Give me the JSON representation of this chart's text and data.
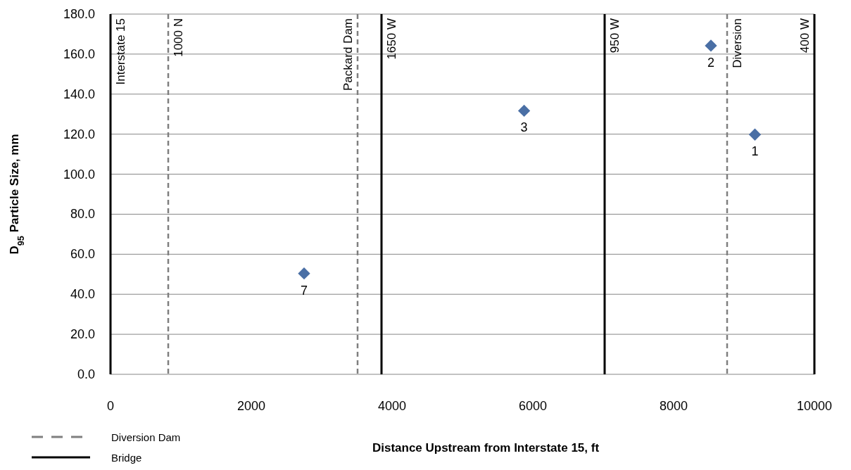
{
  "chart_data": {
    "type": "scatter",
    "xlabel": "Distance Upstream from Interstate 15, ft",
    "ylabel": "D$_{95}$ Particle Size, mm",
    "x": [
      2750,
      5876,
      8530,
      9155
    ],
    "series": [
      {
        "color": "#4a6fa5",
        "values": [
          50.4,
          131.7,
          164.2,
          119.8
        ]
      }
    ],
    "marker": "diamond",
    "xlim": [
      0,
      10000
    ],
    "xticks": [
      0,
      2000,
      4000,
      6000,
      8000,
      10000
    ],
    "ylim": [
      0,
      180
    ],
    "yticks": [
      {
        "value": 0,
        "label": "0.0"
      },
      {
        "value": 20,
        "label": "20.0"
      },
      {
        "value": 40,
        "label": "40.0"
      },
      {
        "value": 60,
        "label": "60.0"
      },
      {
        "value": 80,
        "label": "80.0"
      },
      {
        "value": 100,
        "label": "100.0"
      },
      {
        "value": 120,
        "label": "120.0"
      },
      {
        "value": 140,
        "label": "140.0"
      },
      {
        "value": 160,
        "label": "160.0"
      },
      {
        "value": 180,
        "label": "180.0"
      }
    ],
    "grid": "y",
    "ref_lines": [
      {
        "axis": "x",
        "value": 0,
        "label": "Interstate 15",
        "color": "#000000",
        "line_style": "solid"
      },
      {
        "axis": "x",
        "value": 820,
        "label": "1000 N",
        "color": "#7f7f7f",
        "line_style": "dashed"
      },
      {
        "axis": "x",
        "value": 3510,
        "label": "Packard Dam",
        "color": "#7f7f7f",
        "line_style": "dashed"
      },
      {
        "axis": "x",
        "value": 3850,
        "label": "1650 W",
        "color": "#000000",
        "line_style": "solid"
      },
      {
        "axis": "x",
        "value": 7020,
        "label": "950 W",
        "color": "#000000",
        "line_style": "solid"
      },
      {
        "axis": "x",
        "value": 8760,
        "label": "Diversion",
        "color": "#7f7f7f",
        "line_style": "dashed"
      },
      {
        "axis": "x",
        "value": 10000,
        "label": "400 W",
        "color": "#000000",
        "line_style": "solid"
      }
    ],
    "annotations": [
      {
        "text": "7",
        "x": 2750,
        "y": 50.4
      },
      {
        "text": "3",
        "x": 5876,
        "y": 131.7
      },
      {
        "text": "2",
        "x": 8530,
        "y": 164.2
      },
      {
        "text": "1",
        "x": 9155,
        "y": 119.8
      },
      "Diversion Dam",
      "Bridge"
    ]
  }
}
